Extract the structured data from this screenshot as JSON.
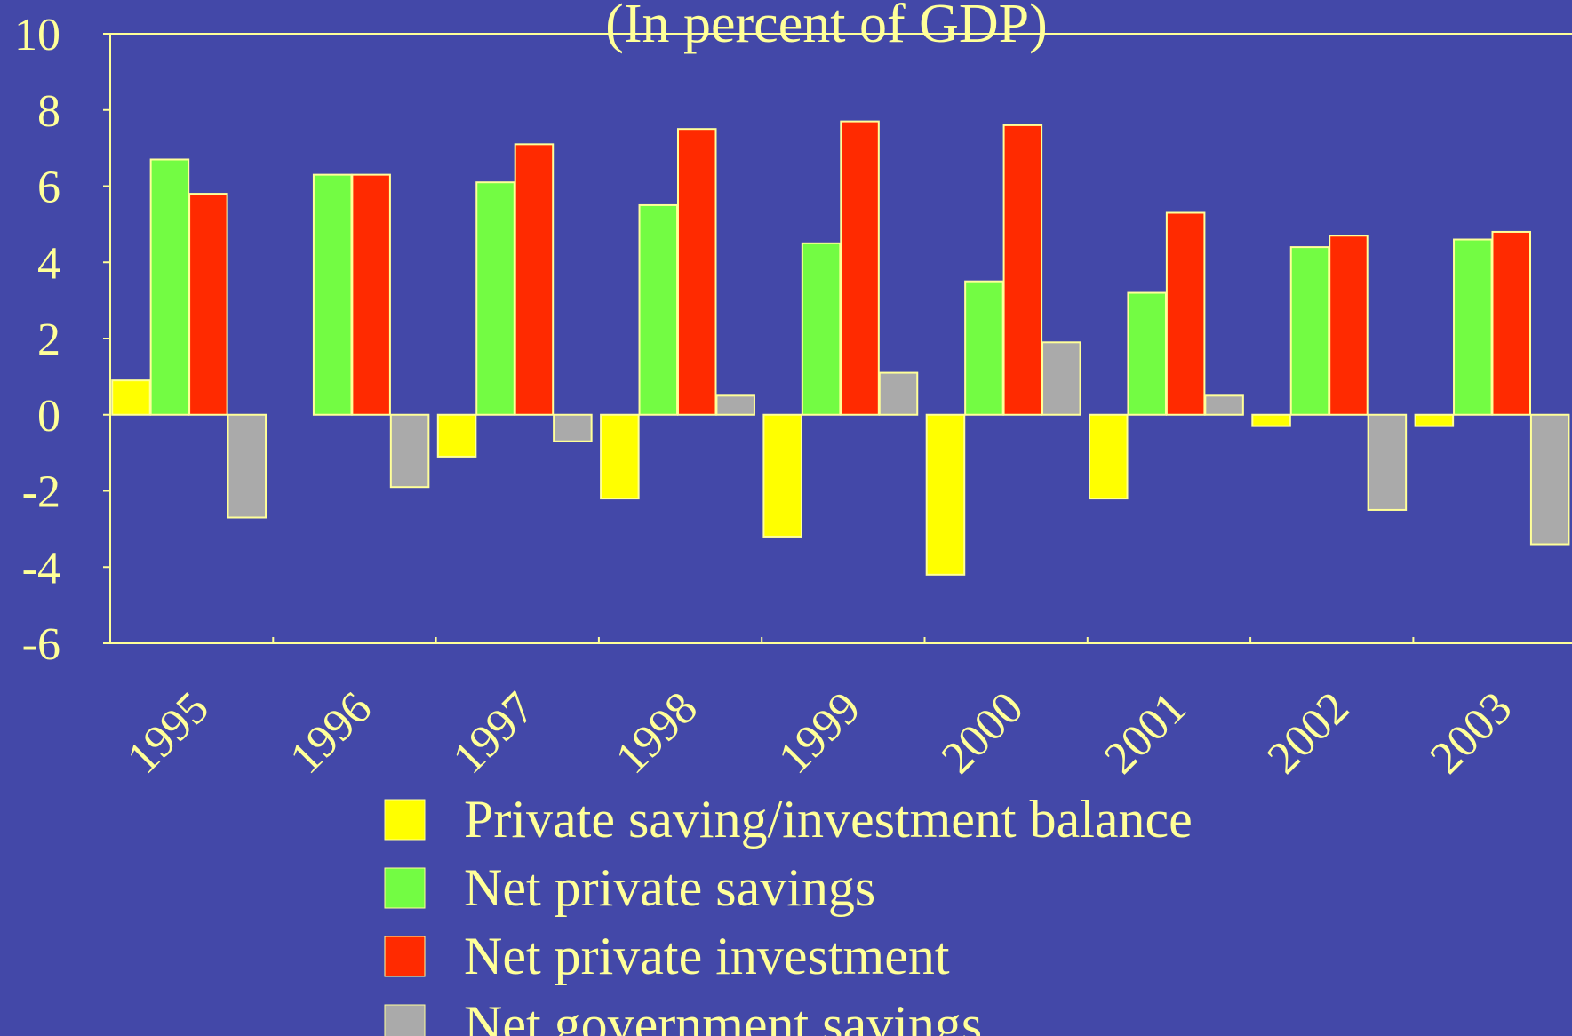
{
  "chart_data": {
    "type": "bar",
    "title": "(In percent of GDP)",
    "categories": [
      "1995",
      "1996",
      "1997",
      "1998",
      "1999",
      "2000",
      "2001",
      "2002",
      "2003"
    ],
    "series": [
      {
        "name": "Private saving/investment balance",
        "color": "#ffff00",
        "values": [
          0.9,
          0,
          -1.1,
          -2.2,
          -3.2,
          -4.2,
          -2.2,
          -0.3,
          -0.3
        ]
      },
      {
        "name": "Net private savings",
        "color": "#73fc43",
        "values": [
          6.7,
          6.3,
          6.1,
          5.5,
          4.5,
          3.5,
          3.2,
          4.4,
          4.6
        ]
      },
      {
        "name": "Net private investment",
        "color": "#ff2a00",
        "values": [
          5.8,
          6.3,
          7.1,
          7.5,
          7.7,
          7.6,
          5.3,
          4.7,
          4.8
        ]
      },
      {
        "name": "Net government savings",
        "color": "#aaaaaa",
        "values": [
          -2.7,
          -1.9,
          -0.7,
          0.5,
          1.1,
          1.9,
          0.5,
          -2.5,
          -3.4
        ]
      }
    ],
    "ylim": [
      -6,
      10
    ],
    "yticks": [
      -6,
      -4,
      -2,
      0,
      2,
      4,
      6,
      8,
      10
    ]
  }
}
